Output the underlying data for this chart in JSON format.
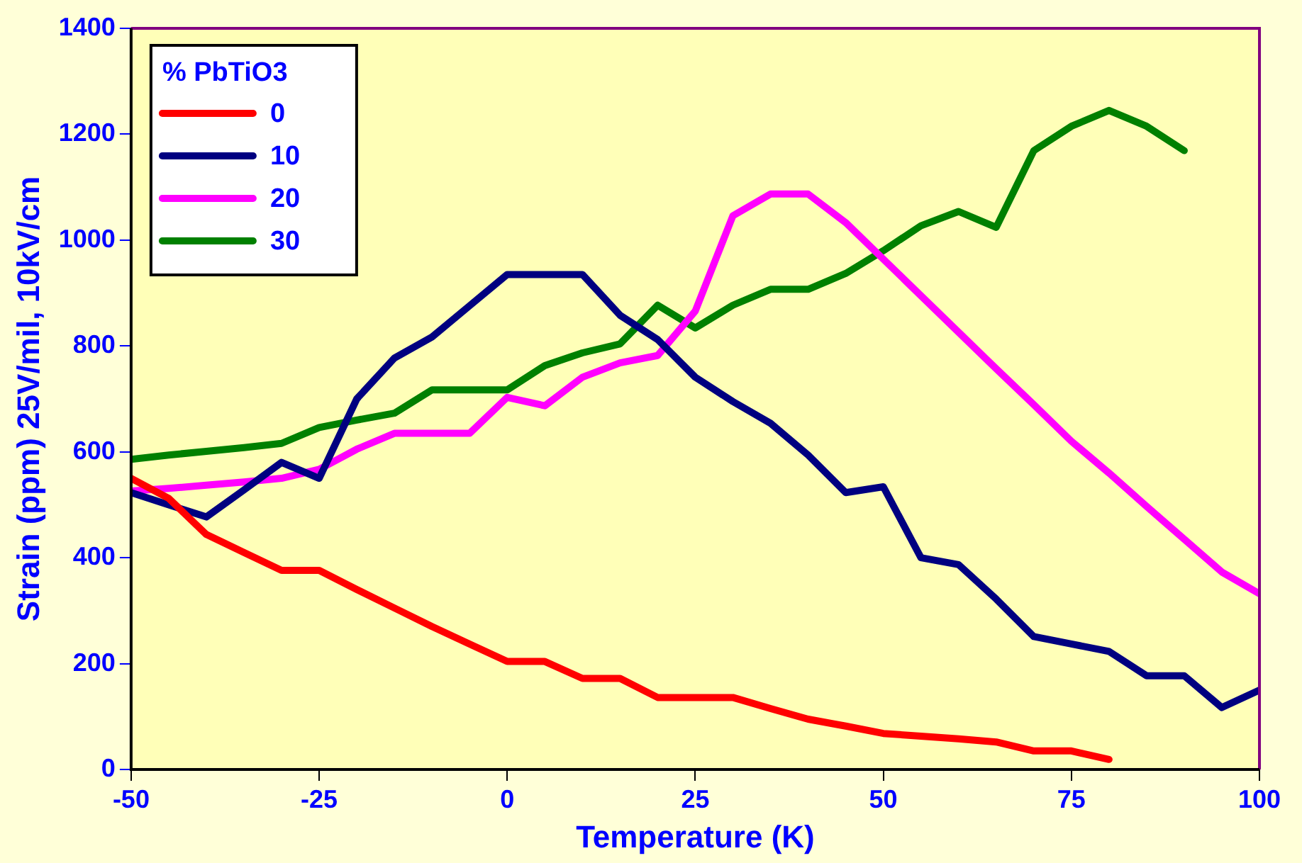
{
  "chart_data": {
    "type": "line",
    "xlabel": "Temperature (K)",
    "ylabel": "Strain (ppm) 25V/mil, 10kV/cm",
    "legend_title": "% PbTiO3",
    "legend": "top left",
    "grid": false,
    "marker": "none",
    "line_style": "solid",
    "x": [
      -50,
      -45,
      -40,
      -35,
      -30,
      -25,
      -20,
      -15,
      -10,
      -5,
      0,
      5,
      10,
      15,
      20,
      25,
      30,
      35,
      40,
      45,
      50,
      55,
      60,
      65,
      70,
      75,
      80,
      85,
      90,
      95,
      100
    ],
    "xlim": [
      -50,
      100
    ],
    "xticks": [
      -50,
      -25,
      0,
      25,
      50,
      75,
      100
    ],
    "ylim": [
      0,
      1400
    ],
    "yticks": [
      0,
      200,
      400,
      600,
      800,
      1000,
      1200,
      1400
    ],
    "series": [
      {
        "name": "0",
        "color": "#ff0000",
        "values": [
          550,
          512,
          444,
          410,
          376,
          376,
          340,
          305,
          270,
          237,
          204,
          204,
          172,
          172,
          136,
          136,
          136,
          115,
          95,
          82,
          68,
          63,
          58,
          52,
          35,
          35,
          19,
          null,
          null,
          null,
          null
        ]
      },
      {
        "name": "10",
        "color": "#000080",
        "values": [
          523,
          500,
          477,
          528,
          580,
          550,
          700,
          777,
          817,
          876,
          935,
          935,
          935,
          858,
          812,
          741,
          695,
          654,
          594,
          523,
          534,
          400,
          387,
          322,
          251,
          237,
          223,
          177,
          177,
          117,
          150
        ]
      },
      {
        "name": "20",
        "color": "#ff00ff",
        "values": [
          526,
          531,
          537,
          543,
          550,
          567,
          605,
          635,
          635,
          635,
          703,
          687,
          741,
          768,
          782,
          866,
          1046,
          1087,
          1087,
          1033,
          964,
          895,
          826,
          757,
          689,
          620,
          560,
          497,
          435,
          373,
          332
        ]
      },
      {
        "name": "30",
        "color": "#008000",
        "values": [
          586,
          594,
          601,
          608,
          616,
          646,
          660,
          673,
          717,
          717,
          717,
          763,
          787,
          804,
          877,
          834,
          877,
          907,
          907,
          937,
          980,
          1027,
          1054,
          1024,
          1169,
          1215,
          1245,
          1215,
          1169,
          null,
          null
        ]
      }
    ]
  }
}
